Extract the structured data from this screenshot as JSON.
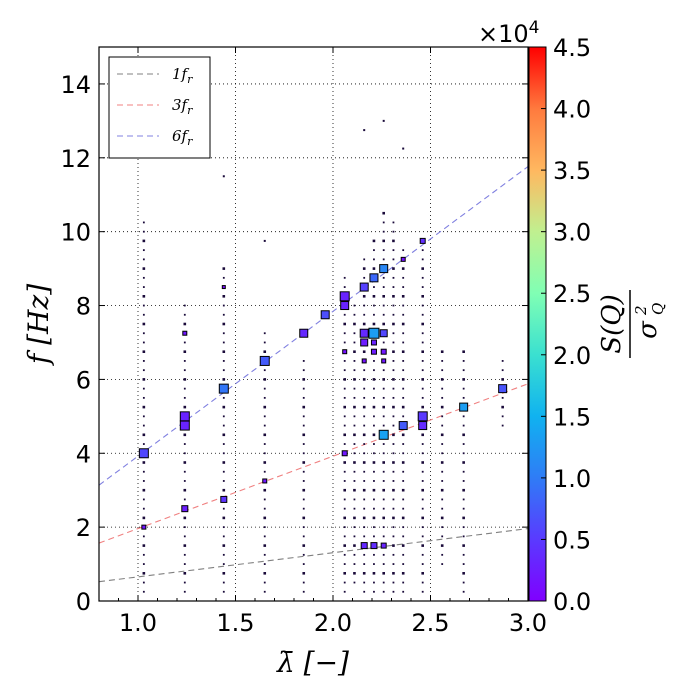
{
  "chart_data": {
    "type": "scatter",
    "xlabel": "λ̄ [−]",
    "ylabel": "f [Hz]",
    "xlim": [
      0.8,
      3.0
    ],
    "ylim": [
      0,
      15
    ],
    "xticks": [
      1.0,
      1.5,
      2.0,
      2.5,
      3.0
    ],
    "xtick_labels": [
      "1.0",
      "1.5",
      "2.0",
      "2.5",
      "3.0"
    ],
    "yticks": [
      0,
      2,
      4,
      6,
      8,
      10,
      12,
      14
    ],
    "ytick_labels": [
      "0",
      "2",
      "4",
      "6",
      "8",
      "10",
      "12",
      "14"
    ],
    "grid": true,
    "legend_position": "top-left",
    "legend": [
      {
        "label": "1f",
        "sub": "r",
        "color": "#808080"
      },
      {
        "label": "3f",
        "sub": "r",
        "color": "#f08080"
      },
      {
        "label": "6f",
        "sub": "r",
        "color": "#8080e0"
      }
    ],
    "lines": [
      {
        "name": "1f_r",
        "slope": 0.6535,
        "intercept": 0.0,
        "color": "#808080"
      },
      {
        "name": "3f_r",
        "slope": 1.9605,
        "intercept": 0.0,
        "color": "#f08080"
      },
      {
        "name": "6f_r",
        "slope": 3.921,
        "intercept": 0.0,
        "color": "#8080e0"
      }
    ],
    "colorbar": {
      "min": 0.0,
      "max": 4.5,
      "ticks": [
        0.0,
        0.5,
        1.0,
        1.5,
        2.0,
        2.5,
        3.0,
        3.5,
        4.0,
        4.5
      ],
      "tick_labels": [
        "0.0",
        "0.5",
        "1.0",
        "1.5",
        "2.0",
        "2.5",
        "3.0",
        "3.5",
        "4.0",
        "4.5"
      ],
      "multiplier_base": "×10",
      "multiplier_exp": "4",
      "title_num": "S(Q)",
      "title_den_base": "σ",
      "title_den_sup": "2",
      "title_den_sub": "Q"
    },
    "points": [
      {
        "x": 1.03,
        "y": 4.0,
        "v": 0.6,
        "s": 9
      },
      {
        "x": 1.24,
        "y": 5.0,
        "v": 0.3,
        "s": 9
      },
      {
        "x": 1.24,
        "y": 4.75,
        "v": 0.3,
        "s": 9
      },
      {
        "x": 1.44,
        "y": 5.75,
        "v": 0.95,
        "s": 9
      },
      {
        "x": 1.65,
        "y": 6.5,
        "v": 0.75,
        "s": 9
      },
      {
        "x": 1.85,
        "y": 7.25,
        "v": 0.35,
        "s": 8
      },
      {
        "x": 1.96,
        "y": 7.75,
        "v": 0.65,
        "s": 8
      },
      {
        "x": 2.06,
        "y": 8.25,
        "v": 0.3,
        "s": 9
      },
      {
        "x": 2.06,
        "y": 8.0,
        "v": 0.3,
        "s": 8
      },
      {
        "x": 2.16,
        "y": 8.5,
        "v": 0.55,
        "s": 8
      },
      {
        "x": 2.21,
        "y": 8.75,
        "v": 0.85,
        "s": 8
      },
      {
        "x": 2.26,
        "y": 9.0,
        "v": 1.1,
        "s": 8
      },
      {
        "x": 2.16,
        "y": 7.25,
        "v": 0.35,
        "s": 8
      },
      {
        "x": 2.16,
        "y": 7.0,
        "v": 0.25,
        "s": 7
      },
      {
        "x": 2.21,
        "y": 7.25,
        "v": 1.3,
        "s": 10
      },
      {
        "x": 2.26,
        "y": 7.25,
        "v": 0.6,
        "s": 7
      },
      {
        "x": 2.26,
        "y": 4.5,
        "v": 1.35,
        "s": 9
      },
      {
        "x": 2.36,
        "y": 4.75,
        "v": 0.75,
        "s": 8
      },
      {
        "x": 2.46,
        "y": 5.0,
        "v": 0.5,
        "s": 9
      },
      {
        "x": 2.46,
        "y": 4.75,
        "v": 0.35,
        "s": 8
      },
      {
        "x": 2.67,
        "y": 5.25,
        "v": 1.3,
        "s": 8
      },
      {
        "x": 2.87,
        "y": 5.75,
        "v": 0.7,
        "s": 8
      },
      {
        "x": 1.24,
        "y": 2.5,
        "v": 0.25,
        "s": 6
      },
      {
        "x": 1.44,
        "y": 2.75,
        "v": 0.45,
        "s": 6
      },
      {
        "x": 2.06,
        "y": 4.0,
        "v": 0.2,
        "s": 5
      },
      {
        "x": 2.46,
        "y": 9.75,
        "v": 0.4,
        "s": 5
      },
      {
        "x": 2.16,
        "y": 1.5,
        "v": 0.35,
        "s": 6
      },
      {
        "x": 2.21,
        "y": 1.5,
        "v": 0.4,
        "s": 6
      },
      {
        "x": 2.26,
        "y": 1.5,
        "v": 0.3,
        "s": 5
      },
      {
        "x": 1.03,
        "y": 2.0,
        "v": 0.2,
        "s": 4
      },
      {
        "x": 2.21,
        "y": 7.0,
        "v": 0.3,
        "s": 5
      },
      {
        "x": 2.21,
        "y": 6.75,
        "v": 0.25,
        "s": 5
      },
      {
        "x": 2.26,
        "y": 6.75,
        "v": 0.2,
        "s": 5
      },
      {
        "x": 2.26,
        "y": 6.5,
        "v": 0.2,
        "s": 4
      },
      {
        "x": 2.16,
        "y": 6.5,
        "v": 0.15,
        "s": 4
      },
      {
        "x": 1.24,
        "y": 7.25,
        "v": 0.2,
        "s": 4
      },
      {
        "x": 1.65,
        "y": 3.25,
        "v": 0.2,
        "s": 4
      },
      {
        "x": 2.06,
        "y": 6.75,
        "v": 0.15,
        "s": 4
      },
      {
        "x": 1.44,
        "y": 8.5,
        "v": 0.1,
        "s": 3
      },
      {
        "x": 2.36,
        "y": 9.25,
        "v": 0.15,
        "s": 4
      }
    ],
    "dot_columns": [
      {
        "x": 1.03,
        "ymin": 0.25,
        "ymax": 10.25
      },
      {
        "x": 1.24,
        "ymin": 0.25,
        "ymax": 8.0
      },
      {
        "x": 1.44,
        "ymin": 0.25,
        "ymax": 9.0
      },
      {
        "x": 1.65,
        "ymin": 0.25,
        "ymax": 7.25
      },
      {
        "x": 1.85,
        "ymin": 0.25,
        "ymax": 6.5
      },
      {
        "x": 2.06,
        "ymin": 0.25,
        "ymax": 8.75
      },
      {
        "x": 2.11,
        "ymin": 0.5,
        "ymax": 8.0
      },
      {
        "x": 2.16,
        "ymin": 0.25,
        "ymax": 9.25
      },
      {
        "x": 2.21,
        "ymin": 0.25,
        "ymax": 9.75
      },
      {
        "x": 2.26,
        "ymin": 0.25,
        "ymax": 10.5
      },
      {
        "x": 2.31,
        "ymin": 0.25,
        "ymax": 10.25
      },
      {
        "x": 2.36,
        "ymin": 0.25,
        "ymax": 9.5
      },
      {
        "x": 2.46,
        "ymin": 0.25,
        "ymax": 9.5
      },
      {
        "x": 2.56,
        "ymin": 1.0,
        "ymax": 6.75
      },
      {
        "x": 2.67,
        "ymin": 0.25,
        "ymax": 6.75
      },
      {
        "x": 2.87,
        "ymin": 4.75,
        "ymax": 6.5
      }
    ],
    "stray_dots": [
      {
        "x": 2.16,
        "y": 12.75
      },
      {
        "x": 2.36,
        "y": 12.25
      },
      {
        "x": 2.26,
        "y": 13.0
      },
      {
        "x": 1.44,
        "y": 11.5
      },
      {
        "x": 1.65,
        "y": 9.75
      }
    ]
  }
}
